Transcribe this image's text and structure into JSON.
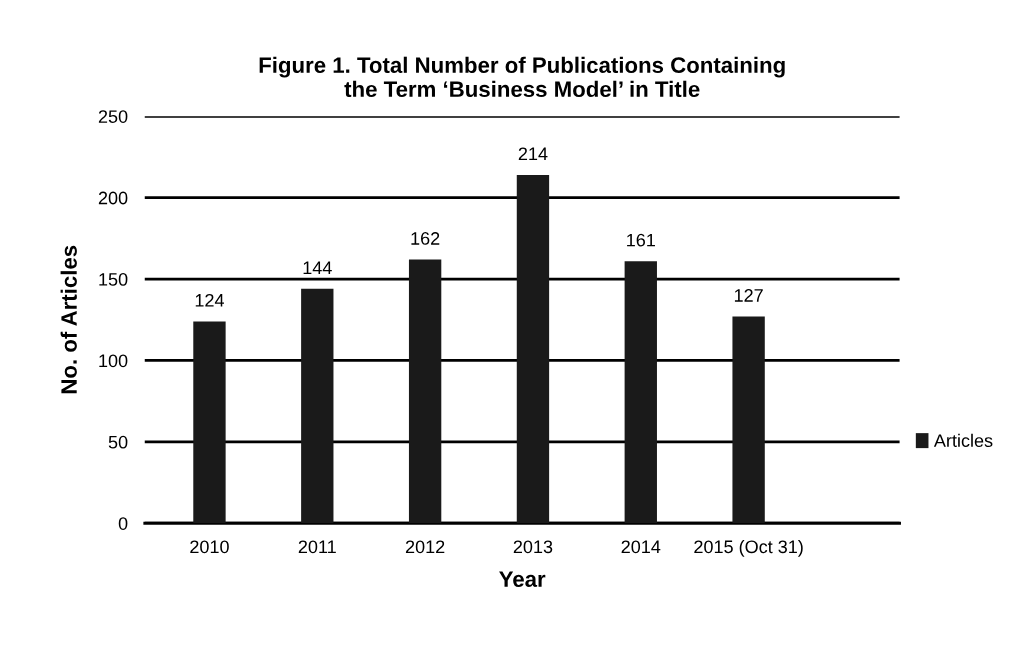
{
  "chart_data": {
    "type": "bar",
    "title": "Figure 1. Total Number of Publications Containing\nthe Term ‘Business Model’ in Title",
    "xlabel": "Year",
    "ylabel": "No. of Articles",
    "categories": [
      "2010",
      "2011",
      "2012",
      "2013",
      "2014",
      "2015 (Oct 31)"
    ],
    "series": [
      {
        "name": "Articles",
        "color": "#1a1a1a",
        "values": [
          124,
          144,
          162,
          214,
          161,
          127
        ]
      }
    ],
    "ylim": [
      0,
      250
    ],
    "yticks": [
      0,
      50,
      100,
      150,
      200,
      250
    ],
    "grid": "y",
    "legend": "right",
    "data_labels": true
  }
}
